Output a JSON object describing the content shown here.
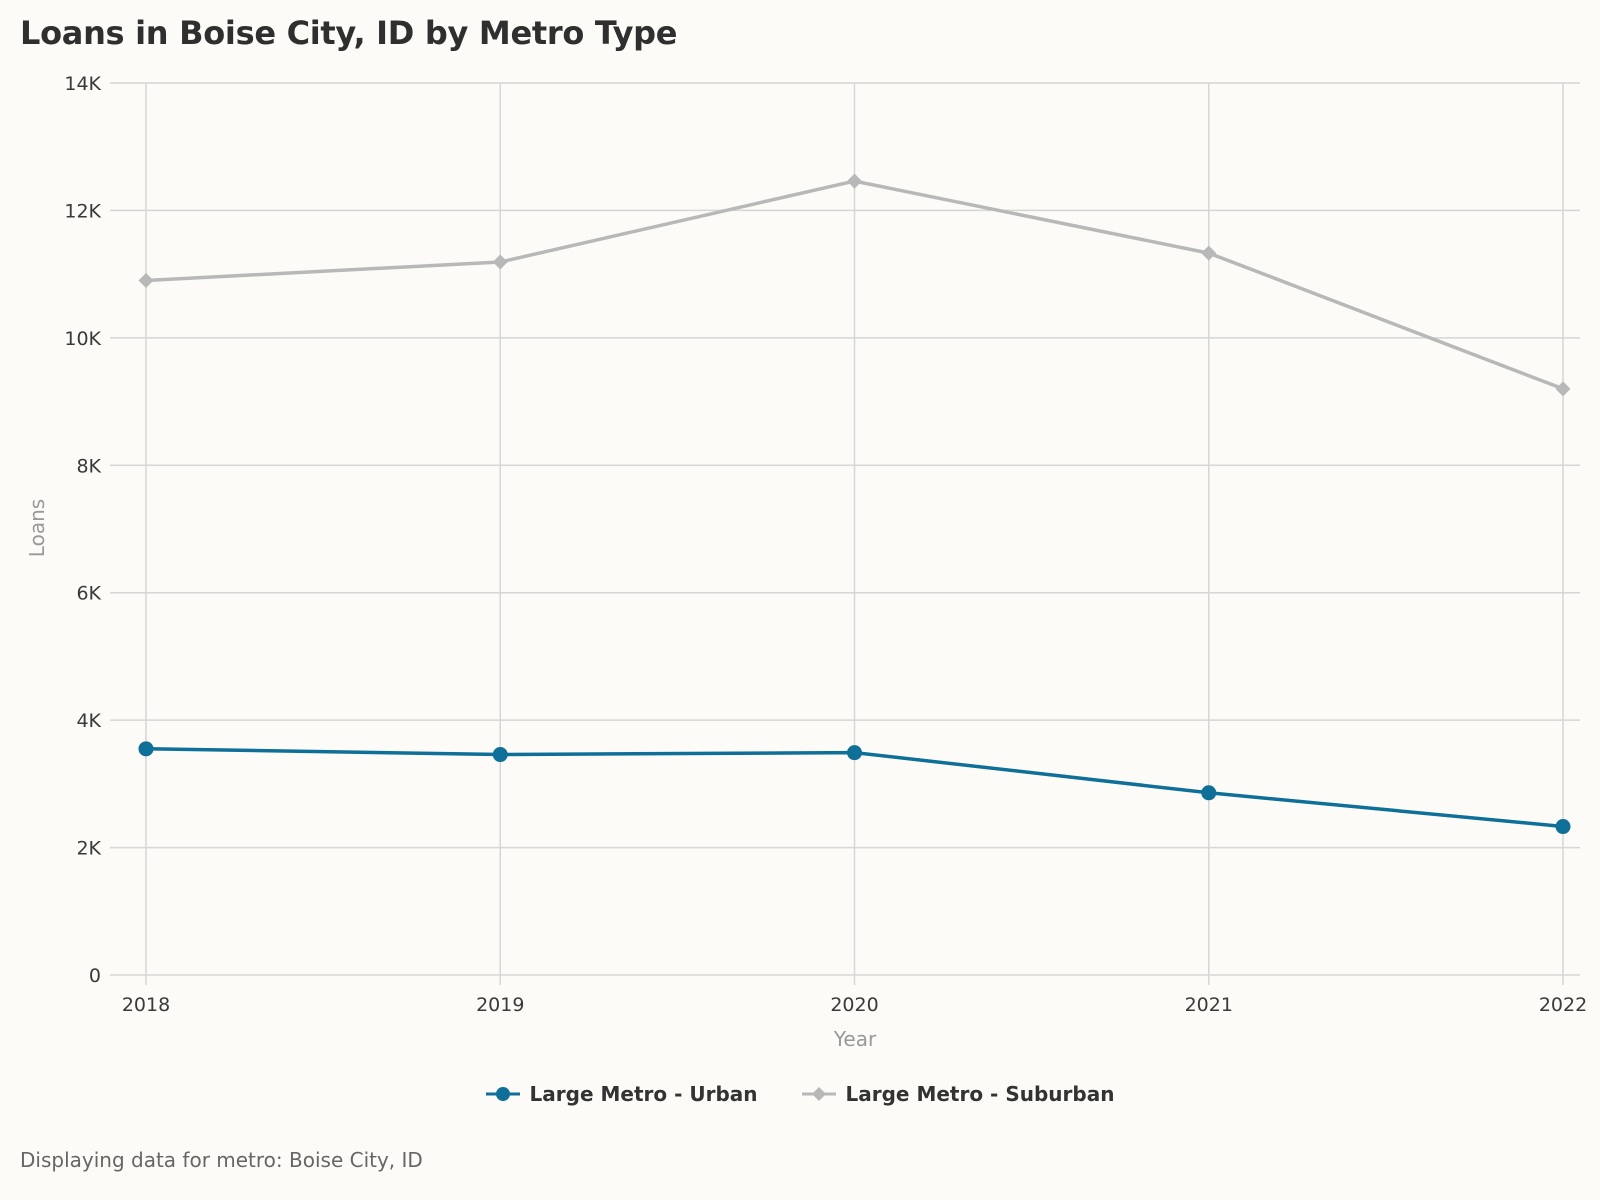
{
  "title": "Loans in Boise City, ID by Metro Type",
  "footer_note": "Displaying data for metro: Boise City, ID",
  "colors": {
    "background": "#fcfbf8",
    "grid": "#d6d6d6",
    "urban": "#0e6f99",
    "suburban": "#b8b8b8"
  },
  "chart_data": {
    "type": "line",
    "title": "Loans in Boise City, ID by Metro Type",
    "xlabel": "Year",
    "ylabel": "Loans",
    "x": [
      "2018",
      "2019",
      "2020",
      "2021",
      "2022"
    ],
    "ylim": [
      0,
      14000
    ],
    "yticks": [
      0,
      2000,
      4000,
      6000,
      8000,
      10000,
      12000,
      14000
    ],
    "ytick_labels": [
      "0",
      "2K",
      "4K",
      "6K",
      "8K",
      "10K",
      "12K",
      "14K"
    ],
    "grid": true,
    "legend_position": "bottom-center",
    "series": [
      {
        "name": "Large Metro - Urban",
        "marker": "circle",
        "color": "#0e6f99",
        "values": [
          3550,
          3460,
          3490,
          2860,
          2330
        ]
      },
      {
        "name": "Large Metro - Suburban",
        "marker": "diamond",
        "color": "#b8b8b8",
        "values": [
          10900,
          11190,
          12460,
          11330,
          9200
        ]
      }
    ]
  }
}
